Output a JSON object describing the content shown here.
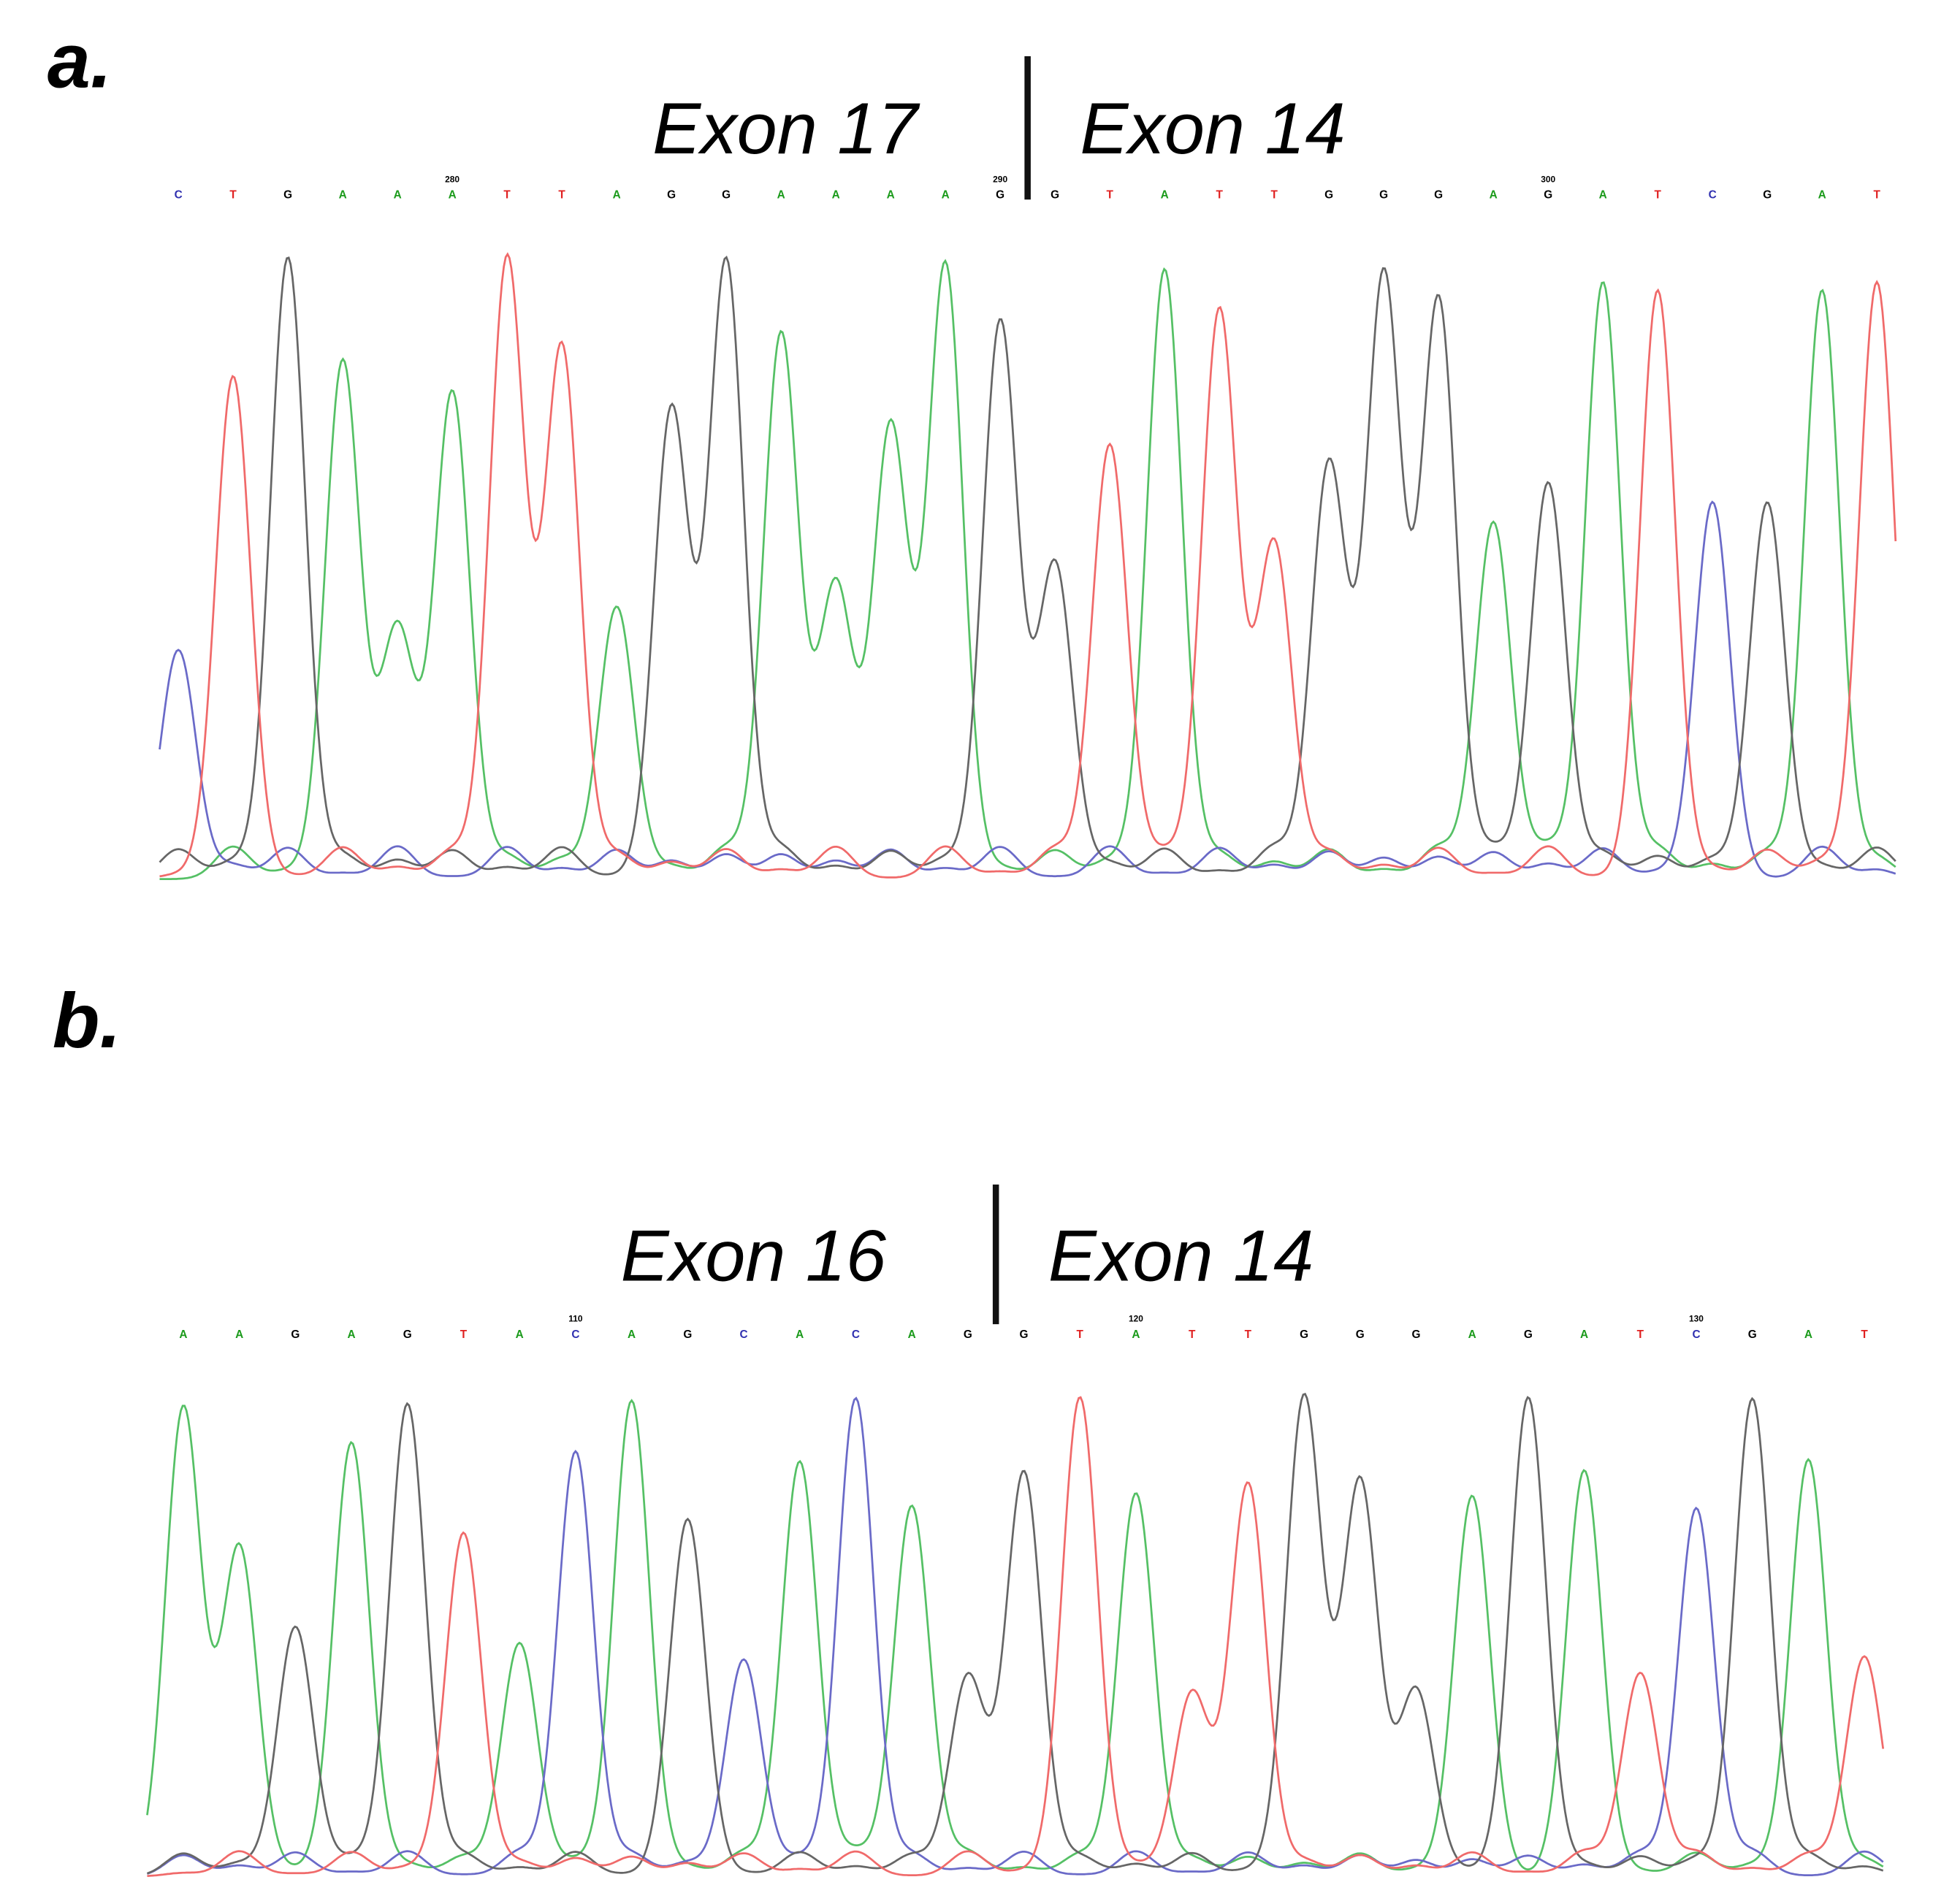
{
  "panels": [
    {
      "label": "a.",
      "exon_left": "Exon 17",
      "exon_right": "Exon 14",
      "bases": [
        "C",
        "T",
        "G",
        "A",
        "A",
        "A",
        "T",
        "T",
        "A",
        "G",
        "G",
        "A",
        "A",
        "A",
        "A",
        "G",
        "G",
        "T",
        "A",
        "T",
        "T",
        "G",
        "G",
        "G",
        "A",
        "G",
        "A",
        "T",
        "C",
        "G",
        "A",
        "T"
      ],
      "position_labels": [
        null,
        null,
        null,
        null,
        null,
        "280",
        null,
        null,
        null,
        null,
        null,
        null,
        null,
        null,
        null,
        "290",
        null,
        null,
        null,
        null,
        null,
        null,
        null,
        null,
        null,
        "300",
        null,
        null,
        null,
        null,
        null,
        null
      ]
    },
    {
      "label": "b.",
      "exon_left": "Exon 16",
      "exon_right": "Exon 14",
      "bases": [
        "A",
        "A",
        "G",
        "A",
        "G",
        "T",
        "A",
        "C",
        "A",
        "G",
        "C",
        "A",
        "C",
        "A",
        "G",
        "G",
        "T",
        "A",
        "T",
        "T",
        "G",
        "G",
        "G",
        "A",
        "G",
        "A",
        "T",
        "C",
        "G",
        "A",
        "T"
      ],
      "position_labels": [
        null,
        null,
        null,
        null,
        null,
        null,
        null,
        "110",
        null,
        null,
        null,
        null,
        null,
        null,
        null,
        null,
        null,
        "120",
        null,
        null,
        null,
        null,
        null,
        null,
        null,
        null,
        null,
        "130",
        null,
        null,
        null
      ]
    }
  ]
}
